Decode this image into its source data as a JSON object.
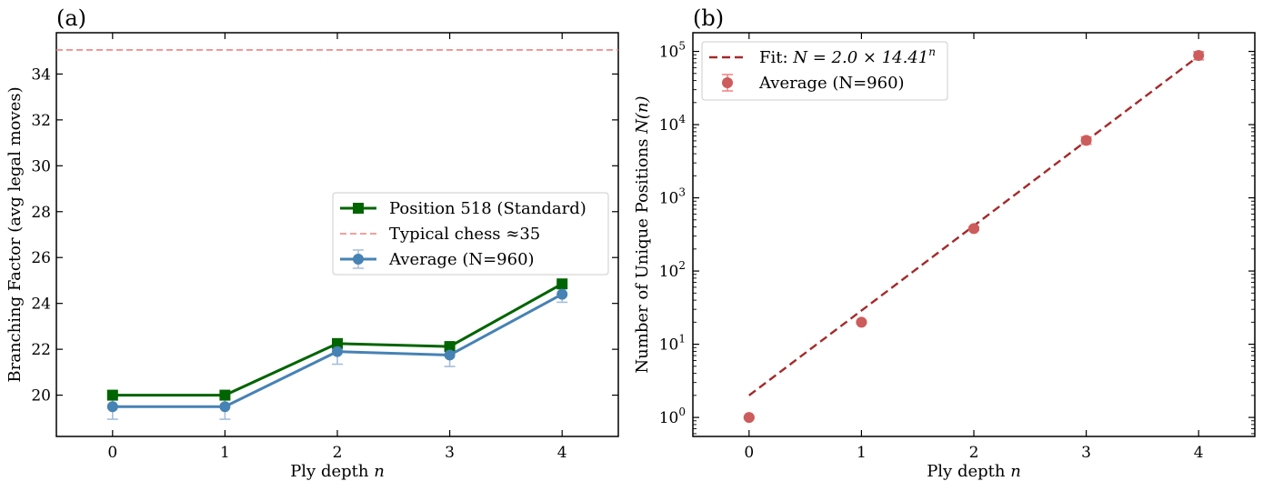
{
  "chart_data": [
    {
      "type": "line",
      "panel_label": "(a)",
      "xlabel_prefix": "Ply depth ",
      "xlabel_var": "n",
      "ylabel": "Branching Factor (avg legal moves)",
      "xlim": [
        -0.5,
        4.5
      ],
      "ylim": [
        18.2,
        35.8
      ],
      "x": [
        0,
        1,
        2,
        3,
        4
      ],
      "x_tick_labels": [
        "0",
        "1",
        "2",
        "3",
        "4"
      ],
      "y_ticks": [
        20,
        22,
        24,
        26,
        28,
        30,
        32,
        34
      ],
      "y_tick_labels": [
        "20",
        "22",
        "24",
        "26",
        "28",
        "30",
        "32",
        "34"
      ],
      "series": [
        {
          "name": "Position 518 (Standard)",
          "values": [
            20,
            20,
            22.25,
            22.12,
            24.85
          ],
          "color": "#006400",
          "marker": "square"
        },
        {
          "name": "Average (N=960)",
          "values": [
            19.5,
            19.5,
            21.9,
            21.75,
            24.4
          ],
          "errors": [
            0.55,
            0.55,
            0.55,
            0.5,
            0.35
          ],
          "color": "#4682b4",
          "error_color": "#a6bddb",
          "marker": "circle"
        }
      ],
      "reference_line": {
        "name": "Typical chess ≈35",
        "value": 35.05,
        "color": "#f08080"
      },
      "legend": {
        "entries": [
          "Position 518 (Standard)",
          "Typical chess ≈35",
          "Average (N=960)"
        ],
        "location": "center-right"
      }
    },
    {
      "type": "scatter",
      "panel_label": "(b)",
      "xlabel_prefix": "Ply depth ",
      "xlabel_var": "n",
      "ylabel_prefix": "Number of Unique Positions ",
      "ylabel_var": "N(n)",
      "yscale": "log",
      "xlim": [
        -0.5,
        4.5
      ],
      "ylim": [
        0.55,
        180000
      ],
      "x": [
        0,
        1,
        2,
        3,
        4
      ],
      "x_tick_labels": [
        "0",
        "1",
        "2",
        "3",
        "4"
      ],
      "y_tick_exponents": [
        "0",
        "1",
        "2",
        "3",
        "4",
        "5"
      ],
      "y_tick_base": "10",
      "series": [
        {
          "name": "Average (N=960)",
          "values": [
            1,
            20,
            380,
            6100,
            88000
          ],
          "errors": [
            0.03,
            0.5,
            20,
            700,
            11000
          ],
          "color": "#cd5c5c",
          "error_color": "#f08080",
          "marker": "circle"
        }
      ],
      "fit": {
        "a": 2.0,
        "b": 14.41,
        "color": "#a52a2a",
        "label_prefix": "Fit: ",
        "label_formula": "N = 2.0 × 14.41",
        "label_exponent": "n"
      },
      "legend": {
        "entries": [
          "Fit: N = 2.0 × 14.41^n",
          "Average (N=960)"
        ],
        "location": "top-left"
      }
    }
  ]
}
